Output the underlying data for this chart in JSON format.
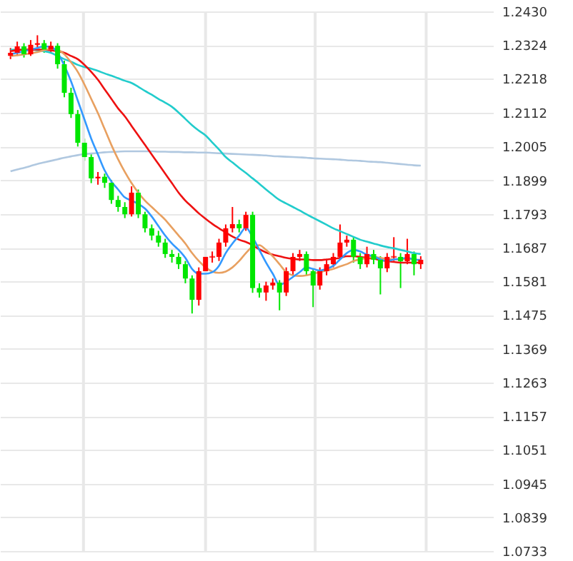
{
  "chart_data": {
    "type": "candlestick",
    "categories": [
      null,
      null,
      null,
      null,
      null,
      null,
      null,
      null,
      null,
      null,
      null,
      null,
      null,
      null,
      null,
      null,
      null,
      null,
      null,
      null,
      null,
      null,
      null,
      null,
      null,
      null,
      null,
      null,
      null,
      null,
      null,
      null,
      null,
      null,
      null,
      null,
      null,
      null,
      null,
      null,
      null,
      null,
      null,
      null,
      null,
      null,
      null,
      null,
      null,
      null,
      null,
      null,
      null,
      null,
      null,
      null,
      null,
      null,
      null,
      null,
      null,
      null
    ],
    "ohlc": [
      [
        1.229,
        1.2315,
        1.228,
        1.23
      ],
      [
        1.23,
        1.2335,
        1.229,
        1.232
      ],
      [
        1.232,
        1.233,
        1.2285,
        1.2295
      ],
      [
        1.2295,
        1.234,
        1.229,
        1.2325
      ],
      [
        1.2325,
        1.2355,
        1.2315,
        1.233
      ],
      [
        1.233,
        1.234,
        1.23,
        1.231
      ],
      [
        1.231,
        1.2335,
        1.23,
        1.2322
      ],
      [
        1.2322,
        1.233,
        1.225,
        1.2264
      ],
      [
        1.2264,
        1.2275,
        1.216,
        1.2174
      ],
      [
        1.2174,
        1.219,
        1.2095,
        1.2107
      ],
      [
        1.2107,
        1.212,
        1.2005,
        1.2017
      ],
      [
        1.2017,
        1.203,
        1.196,
        1.1972
      ],
      [
        1.1972,
        1.1985,
        1.189,
        1.1905
      ],
      [
        1.1905,
        1.1925,
        1.1885,
        1.191
      ],
      [
        1.191,
        1.192,
        1.1875,
        1.1891
      ],
      [
        1.1891,
        1.19,
        1.1825,
        1.1837
      ],
      [
        1.1837,
        1.185,
        1.18,
        1.1815
      ],
      [
        1.1815,
        1.183,
        1.178,
        1.1792
      ],
      [
        1.1792,
        1.188,
        1.1785,
        1.186
      ],
      [
        1.186,
        1.187,
        1.178,
        1.1792
      ],
      [
        1.1792,
        1.18,
        1.1735,
        1.1748
      ],
      [
        1.1748,
        1.176,
        1.171,
        1.1725
      ],
      [
        1.1725,
        1.174,
        1.169,
        1.1703
      ],
      [
        1.1703,
        1.1715,
        1.1655,
        1.1667
      ],
      [
        1.1667,
        1.168,
        1.164,
        1.1658
      ],
      [
        1.1658,
        1.167,
        1.162,
        1.1635
      ],
      [
        1.1635,
        1.1645,
        1.1575,
        1.159
      ],
      [
        1.159,
        1.16,
        1.148,
        1.1523
      ],
      [
        1.1523,
        1.1625,
        1.1505,
        1.1613
      ],
      [
        1.1613,
        1.167,
        1.16,
        1.1658
      ],
      [
        1.1658,
        1.1675,
        1.164,
        1.1658
      ],
      [
        1.1658,
        1.1715,
        1.1645,
        1.1703
      ],
      [
        1.1703,
        1.176,
        1.169,
        1.1748
      ],
      [
        1.1748,
        1.1815,
        1.1735,
        1.1761
      ],
      [
        1.1761,
        1.1775,
        1.1735,
        1.1748
      ],
      [
        1.1748,
        1.18,
        1.174,
        1.179
      ],
      [
        1.179,
        1.18,
        1.1545,
        1.156
      ],
      [
        1.156,
        1.1575,
        1.153,
        1.1546
      ],
      [
        1.1546,
        1.158,
        1.152,
        1.1568
      ],
      [
        1.1568,
        1.159,
        1.1555,
        1.1577
      ],
      [
        1.1577,
        1.1585,
        1.149,
        1.1546
      ],
      [
        1.1546,
        1.1625,
        1.1535,
        1.1613
      ],
      [
        1.1613,
        1.167,
        1.16,
        1.1658
      ],
      [
        1.1658,
        1.168,
        1.1645,
        1.1667
      ],
      [
        1.1667,
        1.1675,
        1.16,
        1.1613
      ],
      [
        1.1613,
        1.162,
        1.15,
        1.1568
      ],
      [
        1.1568,
        1.1625,
        1.1555,
        1.1613
      ],
      [
        1.1613,
        1.165,
        1.16,
        1.1635
      ],
      [
        1.1635,
        1.167,
        1.1625,
        1.1658
      ],
      [
        1.1658,
        1.176,
        1.165,
        1.1703
      ],
      [
        1.1703,
        1.1725,
        1.169,
        1.1712
      ],
      [
        1.1712,
        1.172,
        1.164,
        1.1658
      ],
      [
        1.1658,
        1.167,
        1.162,
        1.1635
      ],
      [
        1.1635,
        1.169,
        1.1625,
        1.1667
      ],
      [
        1.1667,
        1.168,
        1.1635,
        1.1649
      ],
      [
        1.1649,
        1.166,
        1.154,
        1.1622
      ],
      [
        1.1622,
        1.167,
        1.161,
        1.1658
      ],
      [
        1.1658,
        1.172,
        1.1645,
        1.1658
      ],
      [
        1.1658,
        1.167,
        1.156,
        1.1644
      ],
      [
        1.1644,
        1.1715,
        1.1635,
        1.1667
      ],
      [
        1.1667,
        1.1675,
        1.16,
        1.1635
      ],
      [
        1.1635,
        1.166,
        1.162,
        1.1649
      ]
    ],
    "series": [
      {
        "type": "line",
        "color": "#b0c8e0",
        "values": [
          1.1927,
          1.1933,
          1.1938,
          1.1944,
          1.195,
          1.1955,
          1.196,
          1.1965,
          1.197,
          1.1974,
          1.1978,
          1.1981,
          1.1983,
          1.1985,
          1.1987,
          1.1988,
          1.1989,
          1.199,
          1.199,
          1.199,
          1.199,
          1.199,
          1.1989,
          1.1989,
          1.1988,
          1.1988,
          1.1987,
          1.1987,
          1.1986,
          1.1986,
          1.1985,
          1.1984,
          1.1983,
          1.1982,
          1.1981,
          1.198,
          1.1979,
          1.1978,
          1.1977,
          1.1975,
          1.1974,
          1.1973,
          1.1972,
          1.1971,
          1.197,
          1.1968,
          1.1967,
          1.1966,
          1.1965,
          1.1964,
          1.1962,
          1.1961,
          1.196,
          1.1958,
          1.1957,
          1.1956,
          1.1954,
          1.1952,
          1.195,
          1.1948,
          1.1946,
          1.1945
        ]
      },
      {
        "type": "line",
        "color": "#22cccc",
        "values": [
          1.2309,
          1.231,
          1.231,
          1.231,
          1.2308,
          1.2305,
          1.23,
          1.229,
          1.228,
          1.2272,
          1.2262,
          1.2255,
          1.225,
          1.2243,
          1.2235,
          1.2228,
          1.222,
          1.2212,
          1.2205,
          1.2193,
          1.218,
          1.2168,
          1.2155,
          1.2143,
          1.213,
          1.2112,
          1.2092,
          1.2072,
          1.2055,
          1.204,
          1.2018,
          1.1996,
          1.1972,
          1.1955,
          1.1938,
          1.1922,
          1.1905,
          1.1888,
          1.187,
          1.1853,
          1.1837,
          1.1826,
          1.1815,
          1.1804,
          1.1792,
          1.1781,
          1.177,
          1.1759,
          1.1748,
          1.1739,
          1.173,
          1.1721,
          1.1712,
          1.1706,
          1.17,
          1.1694,
          1.1689,
          1.1685,
          1.168,
          1.1675,
          1.167,
          1.1667
        ]
      },
      {
        "type": "line",
        "color": "#ee1111",
        "values": [
          1.2305,
          1.2308,
          1.231,
          1.231,
          1.231,
          1.231,
          1.2308,
          1.2305,
          1.23,
          1.229,
          1.228,
          1.2262,
          1.224,
          1.2215,
          1.2185,
          1.2155,
          1.2125,
          1.21,
          1.207,
          1.204,
          1.201,
          1.198,
          1.195,
          1.192,
          1.189,
          1.186,
          1.1835,
          1.1815,
          1.1795,
          1.1778,
          1.1762,
          1.1748,
          1.1735,
          1.1722,
          1.1712,
          1.1705,
          1.1695,
          1.1682,
          1.1672,
          1.1665,
          1.166,
          1.1655,
          1.1652,
          1.165,
          1.165,
          1.1648,
          1.1648,
          1.165,
          1.1652,
          1.1655,
          1.166,
          1.166,
          1.1658,
          1.1655,
          1.1652,
          1.1648,
          1.1645,
          1.1642,
          1.164,
          1.164,
          1.164,
          1.164
        ]
      },
      {
        "type": "line",
        "color": "#e8a060",
        "values": [
          1.229,
          1.2292,
          1.2295,
          1.2298,
          1.2302,
          1.2308,
          1.2312,
          1.231,
          1.2295,
          1.227,
          1.224,
          1.22,
          1.2155,
          1.211,
          1.206,
          1.201,
          1.1965,
          1.1925,
          1.189,
          1.186,
          1.1835,
          1.1815,
          1.1795,
          1.1775,
          1.175,
          1.1725,
          1.17,
          1.167,
          1.1645,
          1.1625,
          1.1612,
          1.1608,
          1.1612,
          1.1625,
          1.1645,
          1.167,
          1.169,
          1.1695,
          1.168,
          1.166,
          1.1635,
          1.161,
          1.16,
          1.1598,
          1.16,
          1.1605,
          1.161,
          1.1615,
          1.162,
          1.1628,
          1.1635,
          1.1645,
          1.165,
          1.1655,
          1.1658,
          1.1655,
          1.1652,
          1.165,
          1.165,
          1.1652,
          1.165,
          1.1648
        ]
      },
      {
        "type": "line",
        "color": "#3399ff",
        "values": [
          1.2296,
          1.23,
          1.2305,
          1.231,
          1.2315,
          1.232,
          1.2318,
          1.23,
          1.226,
          1.221,
          1.215,
          1.209,
          1.203,
          1.198,
          1.193,
          1.1895,
          1.187,
          1.1845,
          1.1835,
          1.1825,
          1.181,
          1.1785,
          1.1755,
          1.1725,
          1.17,
          1.168,
          1.1655,
          1.162,
          1.1605,
          1.1605,
          1.161,
          1.163,
          1.167,
          1.17,
          1.1725,
          1.175,
          1.172,
          1.168,
          1.164,
          1.1605,
          1.157,
          1.158,
          1.1595,
          1.161,
          1.1625,
          1.162,
          1.1615,
          1.162,
          1.163,
          1.165,
          1.167,
          1.168,
          1.1675,
          1.1665,
          1.166,
          1.165,
          1.1645,
          1.165,
          1.1652,
          1.1655,
          1.165,
          1.1648
        ]
      }
    ],
    "ylim": [
      1.0733,
      1.243
    ],
    "yticks": [
      1.0733,
      1.0839,
      1.0945,
      1.1051,
      1.1157,
      1.1263,
      1.1369,
      1.1475,
      1.1581,
      1.1687,
      1.1793,
      1.1899,
      1.2005,
      1.2112,
      1.2218,
      1.2324,
      {
        "value": 1.243,
        "label": "1.2430"
      }
    ],
    "grid": true,
    "tick_labels": "y"
  }
}
